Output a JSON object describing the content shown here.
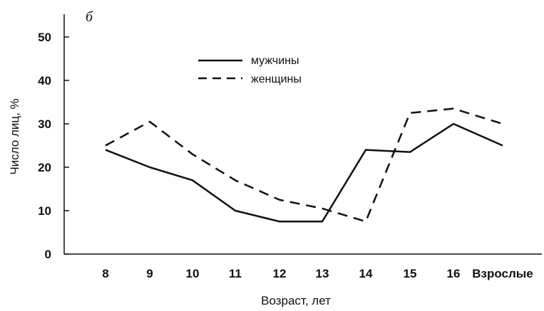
{
  "chart_data": {
    "type": "line",
    "panel_label": "б",
    "categories": [
      "8",
      "9",
      "10",
      "11",
      "12",
      "13",
      "14",
      "15",
      "16",
      "Взрослые"
    ],
    "series": [
      {
        "name": "мужчины",
        "style": "solid",
        "color": "#111111",
        "values": [
          24,
          20,
          17,
          10,
          7.5,
          7.5,
          24,
          23.5,
          30,
          25
        ]
      },
      {
        "name": "женщины",
        "style": "dashed",
        "color": "#111111",
        "values": [
          25,
          30.5,
          23,
          17,
          12.5,
          10.5,
          7.5,
          32.5,
          33.5,
          30
        ]
      }
    ],
    "yticks": [
      "0",
      "10",
      "20",
      "30",
      "40",
      "50"
    ],
    "ylim": [
      0,
      55
    ],
    "xlabel": "Возраст, лет",
    "ylabel": "Число лиц, %",
    "grid": false,
    "legend_position": "top-center"
  }
}
